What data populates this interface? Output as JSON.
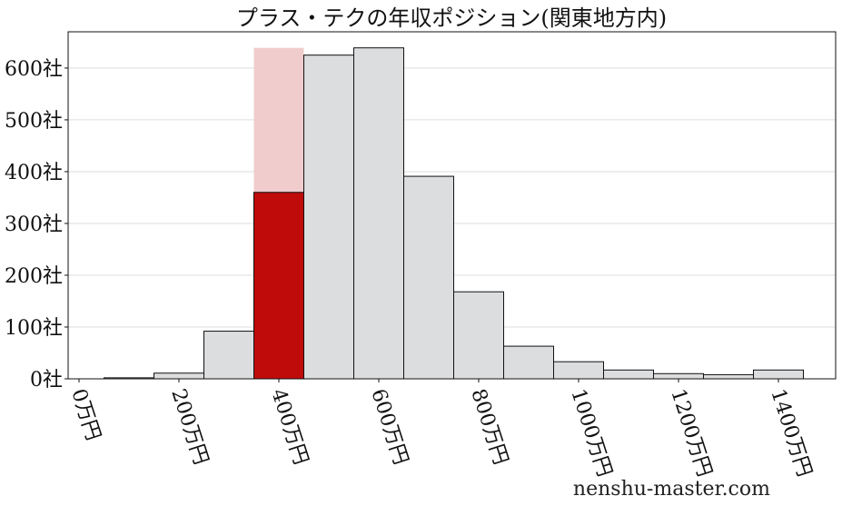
{
  "chart_data": {
    "type": "bar",
    "title": "プラス・テクの年収ポジション(関東地方内)",
    "xlabel": "",
    "ylabel": "",
    "x_unit": "万円",
    "y_unit": "社",
    "bin_width": 100,
    "bins": [
      100,
      200,
      300,
      400,
      500,
      600,
      700,
      800,
      900,
      1000,
      1100,
      1200,
      1300,
      1400
    ],
    "values": [
      2,
      11,
      92,
      360,
      625,
      639,
      391,
      168,
      63,
      33,
      17,
      10,
      8,
      17
    ],
    "highlight": {
      "bin": 400,
      "value": 360,
      "backdrop_value": 639
    },
    "xticks": [
      "0万円",
      "200万円",
      "400万円",
      "600万円",
      "800万円",
      "1000万円",
      "1200万円",
      "1400万円"
    ],
    "xtick_values": [
      0,
      200,
      400,
      600,
      800,
      1000,
      1200,
      1400
    ],
    "yticks": [
      "0社",
      "100社",
      "200社",
      "300社",
      "400社",
      "500社",
      "600社"
    ],
    "ytick_values": [
      0,
      100,
      200,
      300,
      400,
      500,
      600
    ],
    "xlim": [
      -30,
      1480
    ],
    "ylim": [
      0,
      670
    ],
    "grid": "horizontal",
    "colors": {
      "bar": "#dcdddf",
      "highlight": "#c00b0b",
      "backdrop": "#f0cccd",
      "edge": "#111111",
      "grid": "#dddddd"
    }
  },
  "watermark": "nenshu-master.com"
}
